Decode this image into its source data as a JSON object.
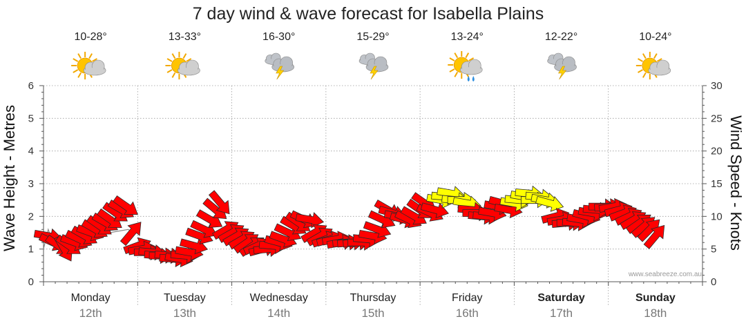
{
  "title": "7 day wind & wave forecast for Isabella Plains",
  "watermark": "www.seabreeze.com.au",
  "colors": {
    "strong_wind": "#ff0000",
    "moderate_wind": "#ffff00",
    "wave_line": "#888888"
  },
  "days": [
    {
      "name": "Monday",
      "date": "12th",
      "temp": "10-28°",
      "icon": "sun-cloud-icon",
      "bold": false
    },
    {
      "name": "Tuesday",
      "date": "13th",
      "temp": "13-33°",
      "icon": "sun-cloud-icon",
      "bold": false
    },
    {
      "name": "Wednesday",
      "date": "14th",
      "temp": "16-30°",
      "icon": "storm-cloud-icon",
      "bold": false
    },
    {
      "name": "Thursday",
      "date": "15th",
      "temp": "15-29°",
      "icon": "storm-cloud-icon",
      "bold": false
    },
    {
      "name": "Friday",
      "date": "16th",
      "temp": "13-24°",
      "icon": "sun-rain-icon",
      "bold": false
    },
    {
      "name": "Saturday",
      "date": "17th",
      "temp": "12-22°",
      "icon": "storm-cloud-icon",
      "bold": true
    },
    {
      "name": "Sunday",
      "date": "18th",
      "temp": "10-24°",
      "icon": "sun-cloud-icon",
      "bold": true
    }
  ],
  "chart_data": {
    "type": "line",
    "title": "7 day wind & wave forecast for Isabella Plains",
    "xlabel": "",
    "ylabel_left": "Wave Height - Metres",
    "ylabel_right": "Wind Speed - Knots",
    "ylim_left": [
      0,
      6
    ],
    "ylim_right": [
      0,
      30
    ],
    "yticks_left": [
      "0",
      "1",
      "2",
      "3",
      "4",
      "5",
      "6"
    ],
    "yticks_right": [
      "0",
      "5",
      "10",
      "15",
      "20",
      "25",
      "30"
    ],
    "xlim": [
      0,
      7
    ],
    "x_unit": "days from Monday 12th 00:00",
    "grid": true,
    "series": [
      {
        "name": "",
        "axis": "right",
        "points": [
          [
            0.05,
            7.0,
            100,
            "red"
          ],
          [
            0.1,
            6.0,
            115,
            "red"
          ],
          [
            0.16,
            5.5,
            125,
            "red"
          ],
          [
            0.22,
            5.0,
            150,
            "red"
          ],
          [
            0.27,
            5.5,
            125,
            "red"
          ],
          [
            0.33,
            6.0,
            110,
            "red"
          ],
          [
            0.38,
            6.5,
            115,
            "red"
          ],
          [
            0.44,
            7.0,
            120,
            "red"
          ],
          [
            0.5,
            7.5,
            110,
            "red"
          ],
          [
            0.55,
            8.0,
            120,
            "red"
          ],
          [
            0.6,
            8.5,
            125,
            "red"
          ],
          [
            0.66,
            9.0,
            120,
            "red"
          ],
          [
            0.71,
            9.5,
            125,
            "red"
          ],
          [
            0.77,
            10.5,
            125,
            "red"
          ],
          [
            0.83,
            11.0,
            120,
            "red"
          ],
          [
            0.88,
            11.5,
            125,
            "red"
          ],
          [
            0.94,
            7.5,
            40,
            "red"
          ],
          [
            1.0,
            5.5,
            70,
            "red"
          ],
          [
            1.05,
            5.0,
            80,
            "red"
          ],
          [
            1.11,
            4.5,
            90,
            "red"
          ],
          [
            1.16,
            4.5,
            95,
            "red"
          ],
          [
            1.22,
            4.0,
            95,
            "red"
          ],
          [
            1.27,
            4.0,
            90,
            "red"
          ],
          [
            1.33,
            4.0,
            95,
            "red"
          ],
          [
            1.38,
            3.5,
            95,
            "red"
          ],
          [
            1.44,
            3.5,
            100,
            "red"
          ],
          [
            1.5,
            4.0,
            95,
            "red"
          ],
          [
            1.55,
            4.5,
            100,
            "red"
          ],
          [
            1.6,
            5.5,
            105,
            "red"
          ],
          [
            1.66,
            7.0,
            110,
            "red"
          ],
          [
            1.71,
            8.0,
            115,
            "red"
          ],
          [
            1.77,
            9.5,
            120,
            "red"
          ],
          [
            1.83,
            11.0,
            130,
            "red"
          ],
          [
            1.88,
            12.0,
            140,
            "red"
          ],
          [
            1.94,
            8.0,
            60,
            "red"
          ],
          [
            2.0,
            7.5,
            60,
            "red"
          ],
          [
            2.05,
            7.0,
            60,
            "red"
          ],
          [
            2.11,
            6.5,
            60,
            "red"
          ],
          [
            2.16,
            6.0,
            55,
            "red"
          ],
          [
            2.22,
            5.5,
            55,
            "red"
          ],
          [
            2.27,
            5.5,
            65,
            "red"
          ],
          [
            2.33,
            5.0,
            75,
            "red"
          ],
          [
            2.38,
            5.0,
            85,
            "red"
          ],
          [
            2.44,
            5.5,
            95,
            "red"
          ],
          [
            2.5,
            6.0,
            105,
            "red"
          ],
          [
            2.55,
            6.5,
            110,
            "red"
          ],
          [
            2.6,
            7.5,
            115,
            "red"
          ],
          [
            2.66,
            8.5,
            120,
            "red"
          ],
          [
            2.71,
            9.0,
            125,
            "red"
          ],
          [
            2.77,
            9.5,
            115,
            "red"
          ],
          [
            2.83,
            9.5,
            100,
            "red"
          ],
          [
            2.88,
            7.5,
            60,
            "red"
          ],
          [
            2.94,
            7.0,
            60,
            "red"
          ],
          [
            3.0,
            6.5,
            70,
            "red"
          ],
          [
            3.05,
            6.5,
            75,
            "red"
          ],
          [
            3.11,
            6.5,
            80,
            "red"
          ],
          [
            3.16,
            6.0,
            80,
            "red"
          ],
          [
            3.22,
            6.0,
            85,
            "red"
          ],
          [
            3.27,
            6.0,
            85,
            "red"
          ],
          [
            3.33,
            6.0,
            85,
            "red"
          ],
          [
            3.38,
            6.0,
            90,
            "red"
          ],
          [
            3.44,
            6.5,
            95,
            "red"
          ],
          [
            3.5,
            7.0,
            100,
            "red"
          ],
          [
            3.55,
            8.0,
            110,
            "red"
          ],
          [
            3.6,
            9.5,
            115,
            "red"
          ],
          [
            3.66,
            11.0,
            120,
            "red"
          ],
          [
            3.71,
            10.5,
            105,
            "red"
          ],
          [
            3.77,
            10.0,
            100,
            "red"
          ],
          [
            3.83,
            9.5,
            105,
            "red"
          ],
          [
            3.88,
            9.5,
            115,
            "red"
          ],
          [
            3.94,
            10.0,
            120,
            "red"
          ],
          [
            4.0,
            11.0,
            125,
            "red"
          ],
          [
            4.05,
            12.0,
            125,
            "red"
          ],
          [
            4.11,
            10.5,
            115,
            "red"
          ],
          [
            4.16,
            11.0,
            105,
            "red"
          ],
          [
            4.22,
            12.5,
            100,
            "yellow"
          ],
          [
            4.27,
            13.0,
            95,
            "yellow"
          ],
          [
            4.33,
            13.5,
            100,
            "yellow"
          ],
          [
            4.38,
            12.5,
            95,
            "yellow"
          ],
          [
            4.44,
            12.5,
            90,
            "yellow"
          ],
          [
            4.5,
            12.0,
            100,
            "yellow"
          ],
          [
            4.55,
            11.0,
            95,
            "red"
          ],
          [
            4.6,
            10.5,
            90,
            "red"
          ],
          [
            4.66,
            10.0,
            95,
            "red"
          ],
          [
            4.71,
            10.0,
            95,
            "red"
          ],
          [
            4.77,
            10.5,
            100,
            "red"
          ],
          [
            4.83,
            11.5,
            100,
            "red"
          ],
          [
            4.88,
            12.0,
            105,
            "red"
          ],
          [
            4.94,
            11.0,
            100,
            "red"
          ],
          [
            5.0,
            12.0,
            100,
            "yellow"
          ],
          [
            5.05,
            12.5,
            95,
            "yellow"
          ],
          [
            5.11,
            13.0,
            100,
            "yellow"
          ],
          [
            5.16,
            13.5,
            95,
            "yellow"
          ],
          [
            5.22,
            12.5,
            90,
            "yellow"
          ],
          [
            5.27,
            13.0,
            95,
            "yellow"
          ],
          [
            5.33,
            12.5,
            100,
            "yellow"
          ],
          [
            5.38,
            12.0,
            105,
            "yellow"
          ],
          [
            5.44,
            10.0,
            75,
            "red"
          ],
          [
            5.5,
            9.5,
            80,
            "red"
          ],
          [
            5.55,
            9.0,
            85,
            "red"
          ],
          [
            5.6,
            9.0,
            90,
            "red"
          ],
          [
            5.66,
            9.0,
            95,
            "red"
          ],
          [
            5.71,
            9.5,
            100,
            "red"
          ],
          [
            5.77,
            10.0,
            105,
            "red"
          ],
          [
            5.83,
            10.5,
            100,
            "red"
          ],
          [
            5.88,
            11.0,
            95,
            "red"
          ],
          [
            5.94,
            11.5,
            90,
            "red"
          ],
          [
            6.0,
            11.5,
            85,
            "red"
          ],
          [
            6.05,
            11.5,
            80,
            "red"
          ],
          [
            6.11,
            11.0,
            75,
            "red"
          ],
          [
            6.16,
            10.5,
            70,
            "red"
          ],
          [
            6.22,
            10.0,
            65,
            "red"
          ],
          [
            6.27,
            9.5,
            60,
            "red"
          ],
          [
            6.33,
            9.0,
            55,
            "red"
          ],
          [
            6.38,
            8.5,
            50,
            "red"
          ],
          [
            6.44,
            8.0,
            45,
            "red"
          ],
          [
            6.5,
            7.0,
            40,
            "red"
          ]
        ]
      },
      {
        "name": "",
        "axis": "left",
        "points": [
          [
            0.0,
            1.0
          ],
          [
            0.05,
            1.6
          ],
          [
            0.1,
            1.2
          ],
          [
            0.5,
            1.4
          ],
          [
            0.9,
            1.6
          ],
          [
            0.95,
            1.5
          ]
        ]
      }
    ]
  }
}
